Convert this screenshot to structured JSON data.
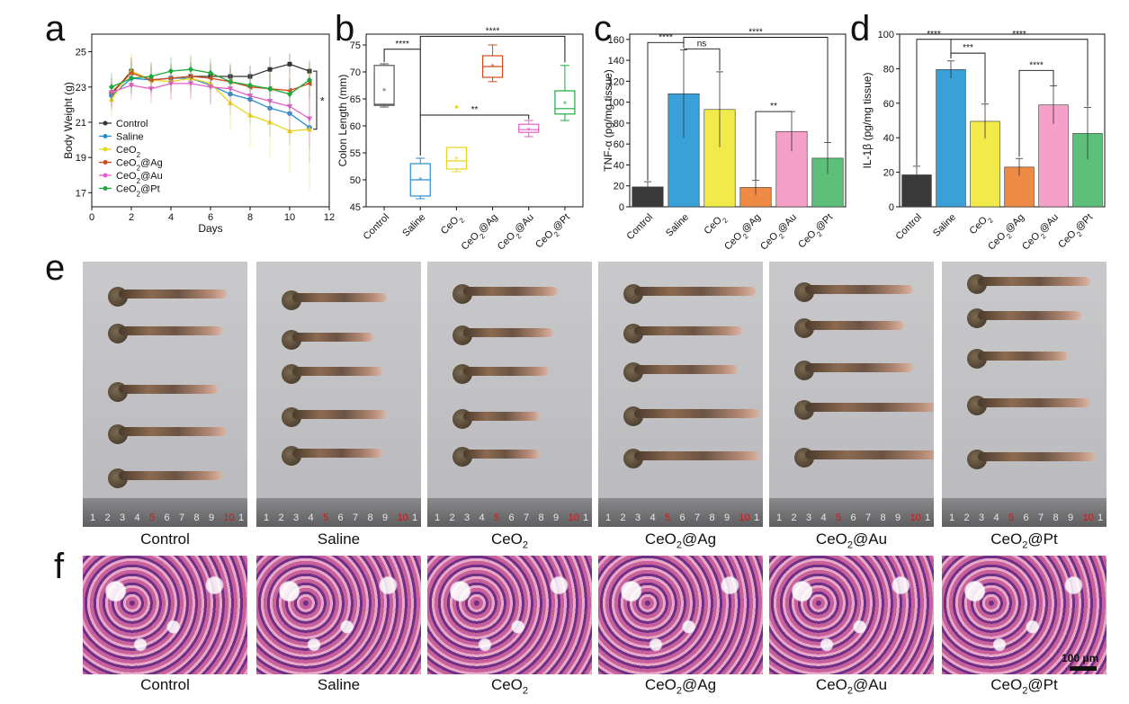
{
  "panels": {
    "a": "a",
    "b": "b",
    "c": "c",
    "d": "d",
    "e": "e",
    "f": "f"
  },
  "chart_data": [
    {
      "type": "line",
      "panel": "a",
      "xlabel": "Days",
      "ylabel": "Body Weight (g)",
      "xlim": [
        0,
        12
      ],
      "ylim": [
        16.2,
        26
      ],
      "xticks": [
        0,
        2,
        4,
        6,
        8,
        10,
        12
      ],
      "yticks": [
        17,
        19,
        21,
        23,
        25
      ],
      "x": [
        1,
        2,
        3,
        4,
        5,
        6,
        7,
        8,
        9,
        10,
        11
      ],
      "significance": "*",
      "series": [
        {
          "name": "Control",
          "color": "#333333",
          "marker": "square",
          "values": [
            22.6,
            23.9,
            23.4,
            23.5,
            23.6,
            23.6,
            23.6,
            23.6,
            24.0,
            24.3,
            23.9
          ],
          "err": [
            0.7,
            0.8,
            0.7,
            0.7,
            0.7,
            0.7,
            0.7,
            0.6,
            0.7,
            0.6,
            0.6
          ]
        },
        {
          "name": "Saline",
          "color": "#2a8bd0",
          "marker": "circle",
          "values": [
            22.5,
            23.5,
            23.4,
            23.5,
            23.5,
            23.1,
            22.6,
            22.3,
            21.8,
            21.5,
            20.7
          ],
          "err": [
            0.8,
            0.9,
            0.8,
            0.8,
            0.9,
            1.0,
            1.2,
            1.4,
            1.6,
            1.8,
            2.0
          ]
        },
        {
          "name": "CeO2",
          "color": "#e6d51c",
          "marker": "triangle",
          "values": [
            22.3,
            23.9,
            23.4,
            23.3,
            23.5,
            23.2,
            22.1,
            21.4,
            21.0,
            20.5,
            20.6
          ],
          "err": [
            1.0,
            1.0,
            1.0,
            1.0,
            1.1,
            1.2,
            1.6,
            1.8,
            2.0,
            2.4,
            3.4
          ]
        },
        {
          "name": "CeO2@Ag",
          "color": "#d24b1c",
          "marker": "triangle-left",
          "values": [
            22.7,
            23.8,
            23.4,
            23.5,
            23.6,
            23.5,
            23.3,
            23.0,
            22.9,
            22.8,
            23.2
          ],
          "err": [
            0.8,
            0.8,
            0.8,
            0.8,
            0.8,
            0.8,
            0.8,
            0.9,
            0.9,
            0.9,
            0.9
          ]
        },
        {
          "name": "CeO2@Au",
          "color": "#e65ec8",
          "marker": "triangle-down",
          "values": [
            22.7,
            23.1,
            22.9,
            23.2,
            23.2,
            23.0,
            22.9,
            22.5,
            22.2,
            21.9,
            21.2
          ],
          "err": [
            0.8,
            0.8,
            0.8,
            0.9,
            0.9,
            1.0,
            1.0,
            1.2,
            1.3,
            1.5,
            1.6
          ]
        },
        {
          "name": "CeO2@Pt",
          "color": "#1ea83a",
          "marker": "diamond",
          "values": [
            23.0,
            23.5,
            23.6,
            23.9,
            24.0,
            23.8,
            23.3,
            23.1,
            22.9,
            22.6,
            23.4
          ],
          "err": [
            0.8,
            0.8,
            0.8,
            0.8,
            0.8,
            0.8,
            0.8,
            0.8,
            0.9,
            0.9,
            0.9
          ]
        }
      ],
      "legend": [
        "Control",
        "Saline",
        "CeO₂",
        "CeO₂@Ag",
        "CeO₂@Au",
        "CeO₂@Pt"
      ]
    },
    {
      "type": "box",
      "panel": "b",
      "ylabel": "Colon Length (mm)",
      "ylim": [
        45,
        77
      ],
      "yticks": [
        45,
        50,
        55,
        60,
        65,
        70,
        75
      ],
      "categories": [
        "Control",
        "Saline",
        "CeO₂",
        "CeO₂@Ag",
        "CeO₂@Au",
        "CeO₂@Pt"
      ],
      "boxes": [
        {
          "min": 63.5,
          "q1": 63.8,
          "median": 64.0,
          "q3": 71.2,
          "max": 71.5,
          "mean": 66.7,
          "color": "#555555"
        },
        {
          "min": 46.5,
          "q1": 47.0,
          "median": 50.0,
          "q3": 53.0,
          "max": 54.0,
          "mean": 50.2,
          "color": "#2a8bd0"
        },
        {
          "min": 51.5,
          "q1": 52.0,
          "median": 53.5,
          "q3": 56.0,
          "max": 56.0,
          "mean": 54.0,
          "color": "#e6d51c"
        },
        {
          "min": 68.2,
          "q1": 69.0,
          "median": 71.0,
          "q3": 73.0,
          "max": 75.0,
          "mean": 71.2,
          "color": "#d24b1c"
        },
        {
          "min": 58.0,
          "q1": 58.8,
          "median": 59.3,
          "q3": 60.3,
          "max": 61.0,
          "mean": 59.4,
          "color": "#e65ec8"
        },
        {
          "min": 61.0,
          "q1": 62.2,
          "median": 63.2,
          "q3": 66.5,
          "max": 71.2,
          "mean": 64.3,
          "color": "#1ea83a"
        }
      ],
      "outliers": [
        {
          "group": "CeO₂",
          "value": 63.5
        }
      ],
      "annotations": [
        "****",
        "****",
        "**"
      ]
    },
    {
      "type": "bar",
      "panel": "c",
      "ylabel": "TNF-α (pg/mg tissue)",
      "ylim": [
        0,
        165
      ],
      "yticks": [
        0,
        20,
        40,
        60,
        80,
        100,
        120,
        140,
        160
      ],
      "categories": [
        "Control",
        "Saline",
        "CeO₂",
        "CeO₂@Ag",
        "CeO₂@Au",
        "CeO₂@Pt"
      ],
      "values": [
        19,
        108,
        93,
        18.5,
        72,
        46.5
      ],
      "err": [
        5,
        42,
        36,
        7,
        19,
        15
      ],
      "colors": [
        "#3a3a3a",
        "#3aa0d8",
        "#f2ea4a",
        "#ee8a44",
        "#f5a0c8",
        "#5cc07a"
      ],
      "annotations": [
        "****",
        "ns",
        "****",
        "**"
      ]
    },
    {
      "type": "bar",
      "panel": "d",
      "ylabel": "IL-1β (pg/mg tissue)",
      "ylim": [
        0,
        100
      ],
      "yticks": [
        0,
        20,
        40,
        60,
        80,
        100
      ],
      "categories": [
        "Control",
        "Saline",
        "CeO₂",
        "CeO₂@Ag",
        "CeO₂@Au",
        "CeO₂@Pt"
      ],
      "values": [
        18.5,
        79.5,
        49.5,
        23,
        59,
        42.5
      ],
      "err": [
        5,
        5,
        10,
        5,
        11,
        15
      ],
      "colors": [
        "#3a3a3a",
        "#3aa0d8",
        "#f2ea4a",
        "#ee8a44",
        "#f5a0c8",
        "#5cc07a"
      ],
      "annotations": [
        "****",
        "***",
        "****",
        "****"
      ]
    }
  ],
  "photos": {
    "labels": [
      "Control",
      "Saline",
      "CeO₂",
      "CeO₂@Ag",
      "CeO₂@Au",
      "CeO₂@Pt"
    ],
    "ruler_numbers": [
      "1",
      "2",
      "3",
      "4",
      "5",
      "6",
      "7",
      "8",
      "9",
      "10",
      "1"
    ]
  },
  "histology": {
    "labels": [
      "Control",
      "Saline",
      "CeO₂",
      "CeO₂@Ag",
      "CeO₂@Au",
      "CeO₂@Pt"
    ],
    "scale_bar": "100 μm"
  }
}
